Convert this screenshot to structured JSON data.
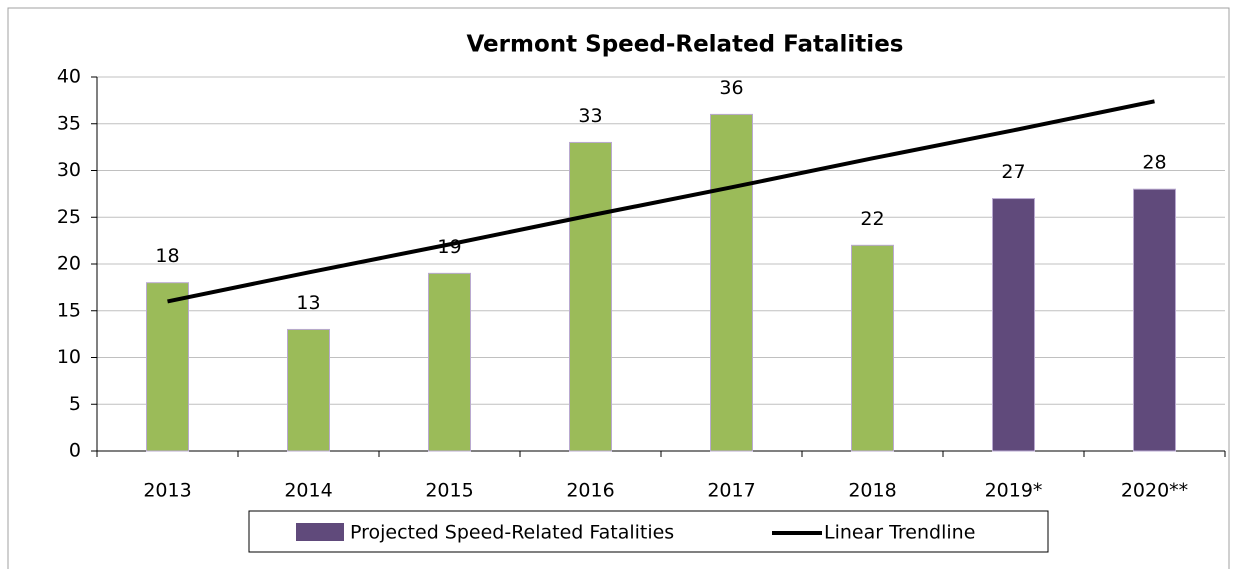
{
  "chart_data": {
    "type": "bar",
    "title": "Vermont Speed-Related Fatalities",
    "categories": [
      "2013",
      "2014",
      "2015",
      "2016",
      "2017",
      "2018",
      "2019*",
      "2020**"
    ],
    "values": [
      18,
      13,
      19,
      33,
      36,
      22,
      27,
      28
    ],
    "colors": [
      "#9bbb59",
      "#9bbb59",
      "#9bbb59",
      "#9bbb59",
      "#9bbb59",
      "#9bbb59",
      "#604a7b",
      "#604a7b"
    ],
    "trendline": {
      "name": "Linear Trendline",
      "color": "#000000",
      "values": [
        16,
        19.1,
        22.1,
        25.2,
        28.2,
        31.3,
        34.3,
        37.4
      ]
    },
    "legend": [
      {
        "name": "Projected Speed-Related Fatalities",
        "color": "#604a7b"
      }
    ],
    "ylim": [
      0,
      40
    ],
    "yticks": [
      0,
      5,
      10,
      15,
      20,
      25,
      30,
      35,
      40
    ],
    "grid": true
  }
}
